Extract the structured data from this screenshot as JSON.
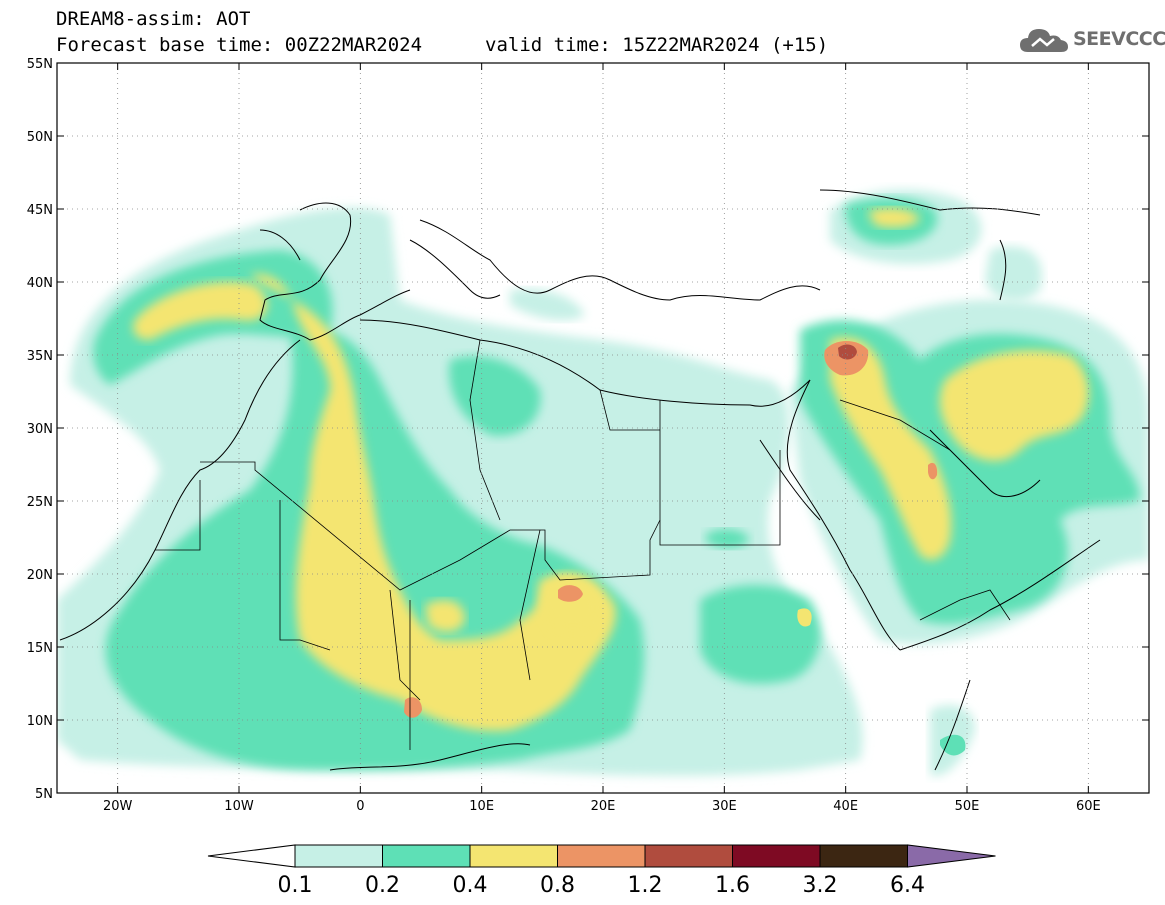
{
  "header": {
    "line1": "DREAM8-assim: AOT",
    "line2": "Forecast base time: 00Z22MAR2024",
    "valid": "valid time: 15Z22MAR2024 (+15)"
  },
  "logo": {
    "text": "SEEVCCC",
    "icon": "cloud-icon",
    "color": "#6f6f6f"
  },
  "map": {
    "lon_range": [
      -25,
      65
    ],
    "lat_range": [
      5,
      55
    ],
    "lon_ticks": [
      {
        "value": -20,
        "label": "20W"
      },
      {
        "value": -10,
        "label": "10W"
      },
      {
        "value": 0,
        "label": "0"
      },
      {
        "value": 10,
        "label": "10E"
      },
      {
        "value": 20,
        "label": "20E"
      },
      {
        "value": 30,
        "label": "30E"
      },
      {
        "value": 40,
        "label": "40E"
      },
      {
        "value": 50,
        "label": "50E"
      },
      {
        "value": 60,
        "label": "60E"
      }
    ],
    "lat_ticks": [
      {
        "value": 5,
        "label": "5N"
      },
      {
        "value": 10,
        "label": "10N"
      },
      {
        "value": 15,
        "label": "15N"
      },
      {
        "value": 20,
        "label": "20N"
      },
      {
        "value": 25,
        "label": "25N"
      },
      {
        "value": 30,
        "label": "30N"
      },
      {
        "value": 35,
        "label": "35N"
      },
      {
        "value": 40,
        "label": "40N"
      },
      {
        "value": 45,
        "label": "45N"
      },
      {
        "value": 50,
        "label": "50N"
      },
      {
        "value": 55,
        "label": "55N"
      }
    ],
    "gridlines": "dotted"
  },
  "colorbar": {
    "bins": [
      {
        "color": "#c6f0e6"
      },
      {
        "color": "#5ee0b6"
      },
      {
        "color": "#f4e571"
      },
      {
        "color": "#ec9465"
      },
      {
        "color": "#b04c3e"
      },
      {
        "color": "#7e0a23"
      },
      {
        "color": "#3c2612"
      }
    ],
    "under_color": "#ffffff",
    "over_color": "#8a6aa8",
    "labels": [
      "0.1",
      "0.2",
      "0.4",
      "0.8",
      "1.2",
      "1.6",
      "3.2",
      "6.4"
    ]
  }
}
